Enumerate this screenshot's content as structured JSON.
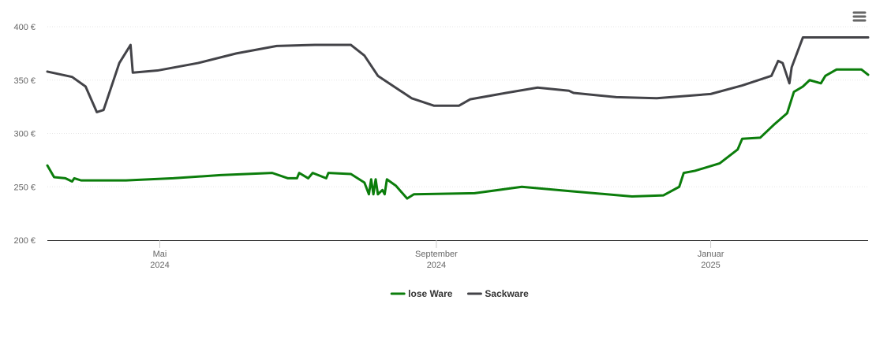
{
  "chart_data": {
    "type": "line",
    "xlim": [
      0,
      365
    ],
    "xticks": [
      {
        "value": 50,
        "label": "Mai",
        "sublabel": "2024"
      },
      {
        "value": 173,
        "label": "September",
        "sublabel": "2024"
      },
      {
        "value": 295,
        "label": "Januar",
        "sublabel": "2025"
      }
    ],
    "ylim": [
      200,
      400
    ],
    "yticks": [
      {
        "value": 200,
        "label": "200 €"
      },
      {
        "value": 250,
        "label": "250 €"
      },
      {
        "value": 300,
        "label": "300 €"
      },
      {
        "value": 350,
        "label": "350 €"
      },
      {
        "value": 400,
        "label": "400 €"
      }
    ],
    "grid": true,
    "legend": "bottom",
    "series": [
      {
        "name": "lose Ware",
        "color": "#0b7d0b",
        "x": [
          0,
          3,
          8,
          11,
          12,
          15,
          35,
          56,
          77,
          100,
          107,
          111,
          112,
          116,
          118,
          124,
          125,
          135,
          141,
          143,
          144,
          145,
          146,
          147,
          149,
          150,
          151,
          155,
          160,
          163,
          190,
          211,
          232,
          260,
          274,
          281,
          283,
          288,
          299,
          307,
          309,
          317,
          323,
          329,
          332,
          336,
          339,
          344,
          346,
          351,
          362,
          365
        ],
        "values": [
          270,
          259,
          258,
          255,
          258,
          256,
          256,
          258,
          261,
          263,
          258,
          258,
          263,
          258,
          263,
          258,
          263,
          262,
          254,
          243,
          257,
          243,
          257,
          243,
          247,
          243,
          257,
          251,
          239,
          243,
          244,
          250,
          246,
          241,
          242,
          250,
          263,
          265,
          272,
          285,
          295,
          296,
          308,
          319,
          339,
          344,
          350,
          347,
          354,
          360,
          360,
          355
        ]
      },
      {
        "name": "Sackware",
        "color": "#434348",
        "x": [
          0,
          11,
          17,
          22,
          25,
          32,
          37,
          38,
          49,
          67,
          84,
          102,
          119,
          135,
          141,
          147,
          162,
          172,
          183,
          188,
          204,
          218,
          232,
          234,
          253,
          271,
          295,
          309,
          322,
          325,
          327,
          330,
          331,
          336,
          365
        ],
        "values": [
          358,
          353,
          344,
          320,
          322,
          366,
          383,
          357,
          359,
          366,
          375,
          382,
          383,
          383,
          373,
          354,
          333,
          326,
          326,
          332,
          338,
          343,
          340,
          338,
          334,
          333,
          337,
          345,
          354,
          368,
          366,
          347,
          362,
          390,
          390
        ]
      }
    ]
  }
}
